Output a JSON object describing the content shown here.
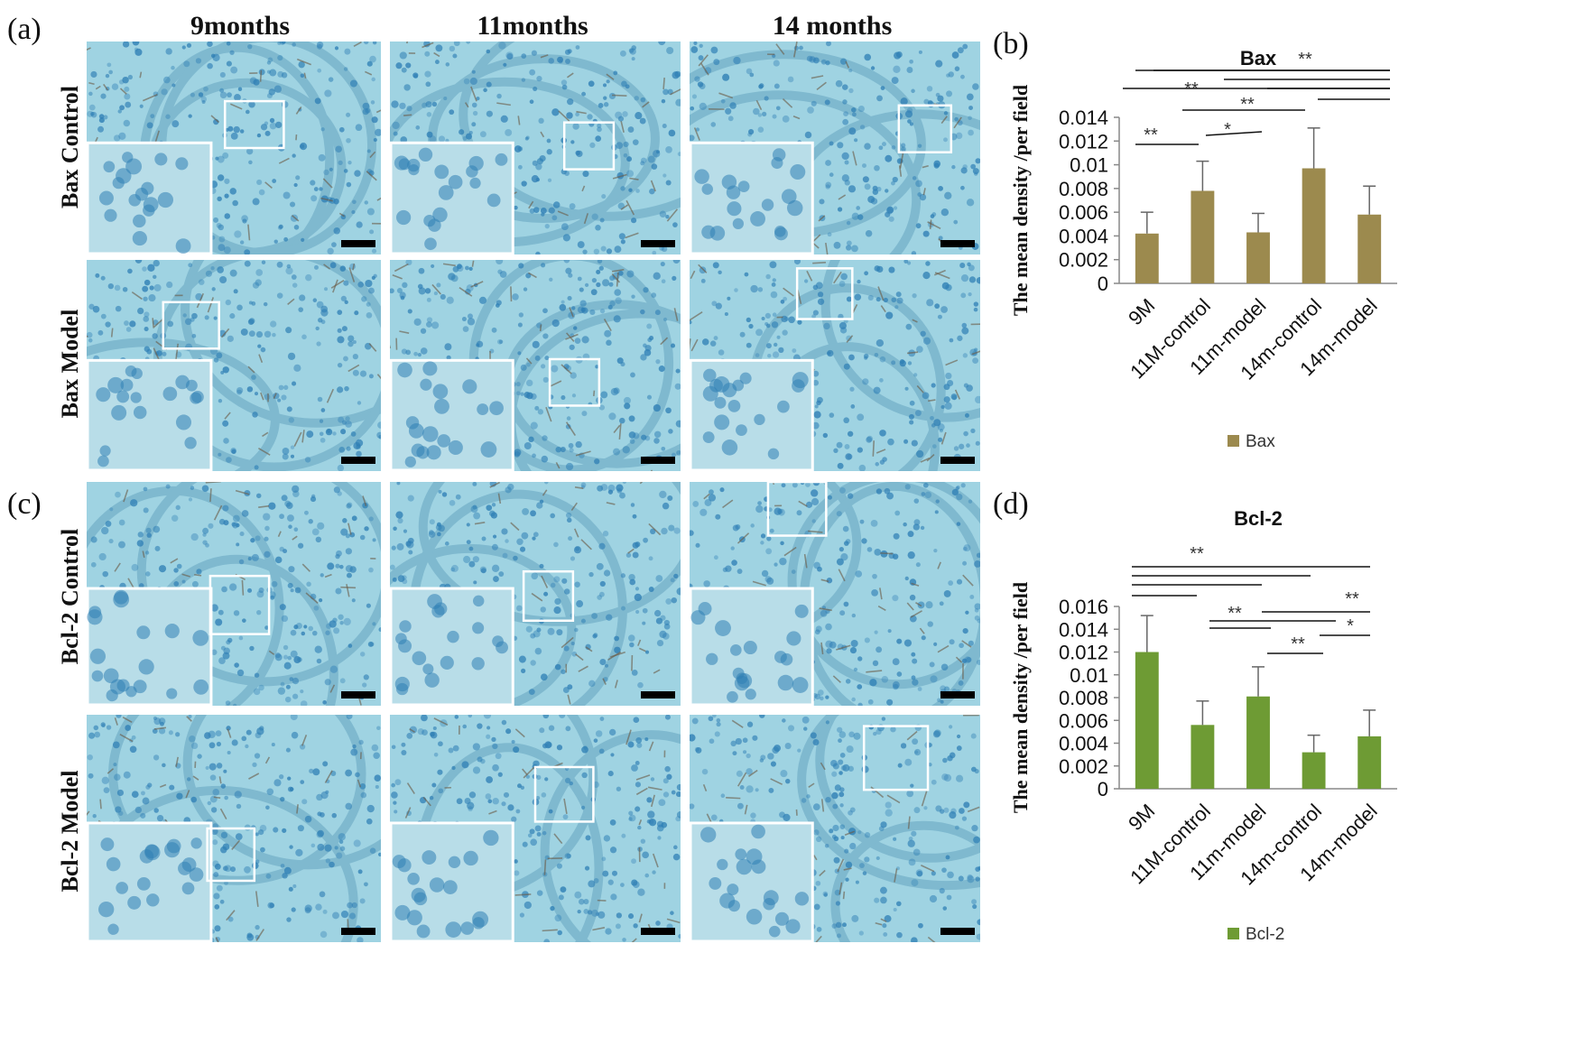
{
  "figure": {
    "panel_labels": [
      "(a)",
      "(b)",
      "(c)",
      "(d)"
    ],
    "column_titles": [
      "9months",
      "11months",
      "14 months"
    ],
    "row_labels": [
      "Bax Control",
      "Bax Model",
      "Bcl-2 Control",
      "Bcl-2 Model"
    ],
    "colors": {
      "tissue_bg": "#9fd3e2",
      "nuclei": "#2f7fb5",
      "stain": "#6b5a45",
      "bax_bar": "#9c8a4e",
      "bcl2_bar": "#6e9b34"
    }
  },
  "chart_data": [
    {
      "type": "bar",
      "title": "Bax",
      "ylabel": "The mean density /per field",
      "categories": [
        "9M",
        "11M-control",
        "11m-model",
        "14m-control",
        "14m-model"
      ],
      "series": [
        {
          "name": "Bax",
          "values": [
            0.0042,
            0.0078,
            0.0043,
            0.0097,
            0.0058
          ],
          "errors": [
            0.0018,
            0.0025,
            0.0016,
            0.0034,
            0.0024
          ]
        }
      ],
      "ylim": [
        0,
        0.014
      ],
      "yticks": [
        "0",
        "0.002",
        "0.004",
        "0.006",
        "0.008",
        "0.01",
        "0.012",
        "0.014"
      ],
      "legend": "bottom",
      "significance": [
        "**",
        "**",
        "**",
        "**",
        "*",
        "**"
      ]
    },
    {
      "type": "bar",
      "title": "Bcl-2",
      "ylabel": "The mean density /per field",
      "categories": [
        "9M",
        "11M-control",
        "11m-model",
        "14m-control",
        "14m-model"
      ],
      "series": [
        {
          "name": "Bcl-2",
          "values": [
            0.012,
            0.0056,
            0.0081,
            0.0032,
            0.0046
          ],
          "errors": [
            0.0032,
            0.0021,
            0.0026,
            0.0015,
            0.0023
          ]
        }
      ],
      "ylim": [
        0,
        0.016
      ],
      "yticks": [
        "0",
        "0.002",
        "0.004",
        "0.006",
        "0.008",
        "0.01",
        "0.012",
        "0.014",
        "0.016"
      ],
      "legend": "bottom",
      "significance": [
        "**",
        "**",
        "**",
        "*",
        "**"
      ]
    }
  ]
}
